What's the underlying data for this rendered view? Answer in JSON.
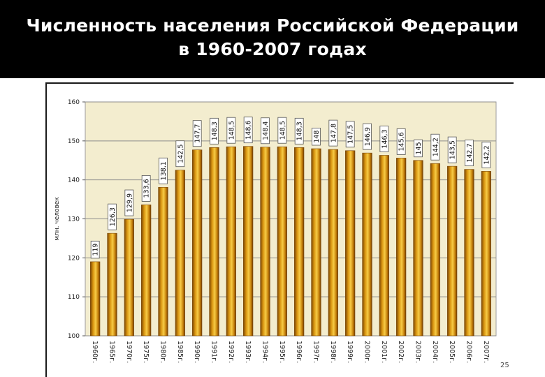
{
  "slide": {
    "title_line1": "Численность населения Российской Федерации",
    "title_line2": "в 1960-2007 годах",
    "page_number": "25"
  },
  "chart_data": {
    "type": "bar",
    "title": "Численность населения Российской Федерации в 1960-2007 годах",
    "xlabel": "",
    "ylabel": "млн. человек",
    "ylim": [
      100,
      160
    ],
    "yticks": [
      100,
      110,
      120,
      130,
      140,
      150,
      160
    ],
    "grid": true,
    "categories": [
      "1960г.",
      "1965г.",
      "1970г.",
      "1975г.",
      "1980г.",
      "1985г.",
      "1990г.",
      "1991г.",
      "1992г.",
      "1993г.",
      "1994г.",
      "1995г.",
      "1996г.",
      "1997г.",
      "1998г.",
      "1999г.",
      "2000г.",
      "2001г.",
      "2002г.",
      "2003г.",
      "2004г.",
      "2005г.",
      "2006г.",
      "2007г."
    ],
    "values": [
      119,
      126.3,
      129.9,
      133.6,
      138.1,
      142.5,
      147.7,
      148.3,
      148.5,
      148.6,
      148.4,
      148.5,
      148.3,
      148,
      147.8,
      147.5,
      146.9,
      146.3,
      145.6,
      145,
      144.2,
      143.5,
      142.7,
      142.2
    ],
    "value_labels": [
      "119",
      "126,3",
      "129,9",
      "133,6",
      "138,1",
      "142,5",
      "147,7",
      "148,3",
      "148,5",
      "148,6",
      "148,4",
      "148,5",
      "148,3",
      "148",
      "147,8",
      "147,5",
      "146,9",
      "146,3",
      "145,6",
      "145",
      "144,2",
      "143,5",
      "142,7",
      "142,2"
    ],
    "colors": {
      "plot_background": "#f3edcf",
      "bar": "#d28f0c",
      "gridline": "#8c8c8c"
    }
  }
}
